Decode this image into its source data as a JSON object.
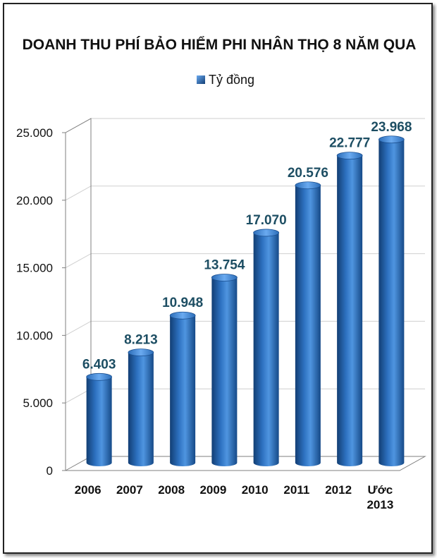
{
  "chart_data": {
    "type": "bar",
    "title": "DOANH THU PHÍ BẢO HIỂM PHI NHÂN THỌ 8 NĂM QUA",
    "legend": [
      "Tỷ đồng"
    ],
    "legend_position": "top",
    "categories": [
      "2006",
      "2007",
      "2008",
      "2009",
      "2010",
      "2011",
      "2012",
      "Ước 2013"
    ],
    "category_lines": [
      [
        "2006"
      ],
      [
        "2007"
      ],
      [
        "2008"
      ],
      [
        "2009"
      ],
      [
        "2010"
      ],
      [
        "2011"
      ],
      [
        "2012"
      ],
      [
        "Ước",
        "2013"
      ]
    ],
    "series": [
      {
        "name": "Tỷ đồng",
        "values": [
          6403,
          8213,
          10948,
          13754,
          17070,
          20576,
          22777,
          23968
        ],
        "labels": [
          "6.403",
          "8.213",
          "10.948",
          "13.754",
          "17.070",
          "20.576",
          "22.777",
          "23.968"
        ]
      }
    ],
    "yticks": [
      "0",
      "5.000",
      "10.000",
      "15.000",
      "20.000",
      "25.000"
    ],
    "ylim": [
      0,
      25000
    ],
    "grid": true,
    "xlabel": "",
    "ylabel": ""
  },
  "colors": {
    "bar_dark": "#1b4f8f",
    "bar_mid": "#2f75c4",
    "bar_light": "#5a9ee6",
    "label": "#1d4e63"
  }
}
